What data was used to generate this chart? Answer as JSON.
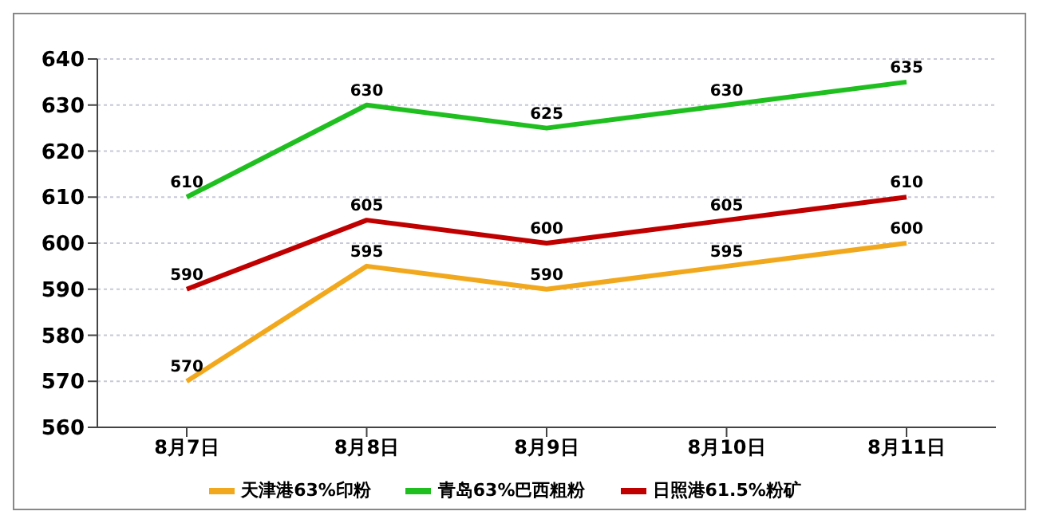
{
  "chart_data": {
    "type": "line",
    "categories": [
      "8月7日",
      "8月8日",
      "8月9日",
      "8月10日",
      "8月11日"
    ],
    "series": [
      {
        "name": "天津港63%印粉",
        "color": "#f2a81d",
        "values": [
          570,
          595,
          590,
          595,
          600
        ]
      },
      {
        "name": "青岛63%巴西粗粉",
        "color": "#1fbf1f",
        "values": [
          610,
          630,
          625,
          630,
          635
        ]
      },
      {
        "name": "日照港61.5%粉矿",
        "color": "#c00000",
        "values": [
          590,
          605,
          600,
          605,
          610
        ]
      }
    ],
    "ylim": [
      560,
      640
    ],
    "yticks": [
      560,
      570,
      580,
      590,
      600,
      610,
      620,
      630,
      640
    ],
    "grid": "y",
    "legend": "bottom",
    "data_labels": true,
    "marker": "none",
    "line_style": "solid"
  }
}
